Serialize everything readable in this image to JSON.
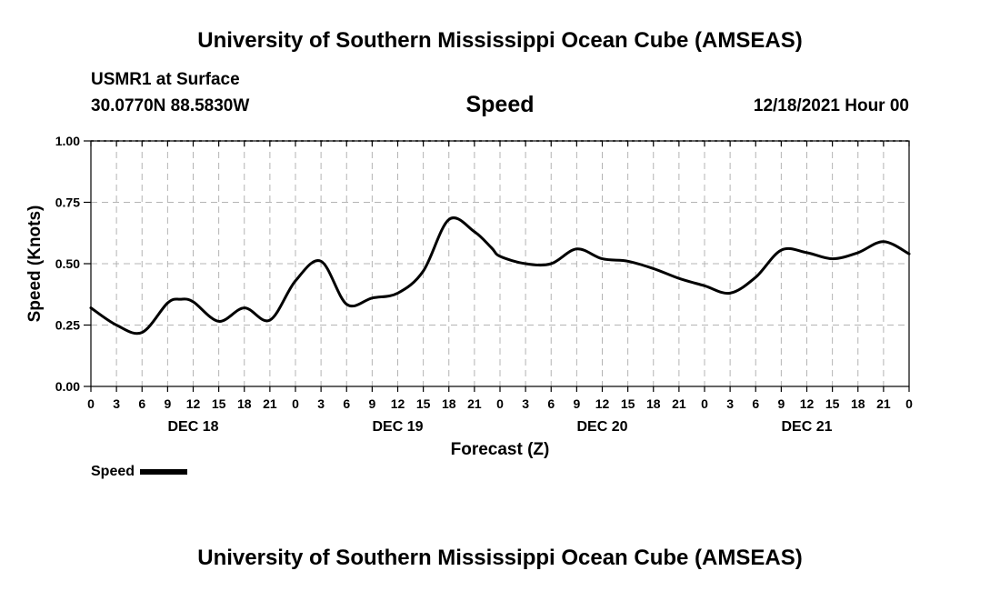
{
  "header": {
    "title": "University of Southern Mississippi Ocean Cube (AMSEAS)",
    "station": "USMR1 at Surface",
    "coords": "30.0770N  88.5830W",
    "variable": "Speed",
    "date": "12/18/2021 Hour 00"
  },
  "footer": {
    "title": "University of Southern Mississippi Ocean Cube (AMSEAS)"
  },
  "legend": {
    "label": "Speed"
  },
  "colors": {
    "line": "#000000",
    "grid": "#b4b4b4"
  },
  "chart_data": {
    "type": "line",
    "title": "Speed",
    "xlabel": "Forecast (Z)",
    "ylabel": "Speed (Knots)",
    "xlim": [
      0,
      96
    ],
    "ylim": [
      0,
      1
    ],
    "yticks": [
      "0.00",
      "0.25",
      "0.50",
      "0.75",
      "1.00"
    ],
    "ytick_values": [
      0,
      0.25,
      0.5,
      0.75,
      1.0
    ],
    "xtick_hours": [
      0,
      3,
      6,
      9,
      12,
      15,
      18,
      21,
      24,
      27,
      30,
      33,
      36,
      39,
      42,
      45,
      48,
      51,
      54,
      57,
      60,
      63,
      66,
      69,
      72,
      75,
      78,
      81,
      84,
      87,
      90,
      93,
      96
    ],
    "xtick_labels": [
      "0",
      "3",
      "6",
      "9",
      "12",
      "15",
      "18",
      "21",
      "0",
      "3",
      "6",
      "9",
      "12",
      "15",
      "18",
      "21",
      "0",
      "3",
      "6",
      "9",
      "12",
      "15",
      "18",
      "21",
      "0",
      "3",
      "6",
      "9",
      "12",
      "15",
      "18",
      "21",
      "0"
    ],
    "day_labels": [
      {
        "hour": 12,
        "label": "DEC 18"
      },
      {
        "hour": 36,
        "label": "DEC 19"
      },
      {
        "hour": 60,
        "label": "DEC 20"
      },
      {
        "hour": 84,
        "label": "DEC 21"
      }
    ],
    "grid": true,
    "legend_position": "bottom-left",
    "series": [
      {
        "name": "Speed",
        "x": [
          0,
          3,
          6,
          9,
          10.5,
          12,
          15,
          18,
          21,
          24,
          27,
          30,
          33,
          36,
          39,
          42,
          45,
          47,
          48,
          51,
          54,
          57,
          60,
          63,
          66,
          69,
          72,
          75,
          78,
          81,
          84,
          87,
          90,
          93,
          96
        ],
        "values": [
          0.32,
          0.25,
          0.22,
          0.34,
          0.355,
          0.345,
          0.265,
          0.32,
          0.27,
          0.43,
          0.51,
          0.335,
          0.36,
          0.38,
          0.47,
          0.68,
          0.63,
          0.565,
          0.53,
          0.5,
          0.5,
          0.56,
          0.52,
          0.51,
          0.48,
          0.44,
          0.41,
          0.38,
          0.445,
          0.555,
          0.545,
          0.52,
          0.545,
          0.59,
          0.54
        ]
      }
    ]
  }
}
